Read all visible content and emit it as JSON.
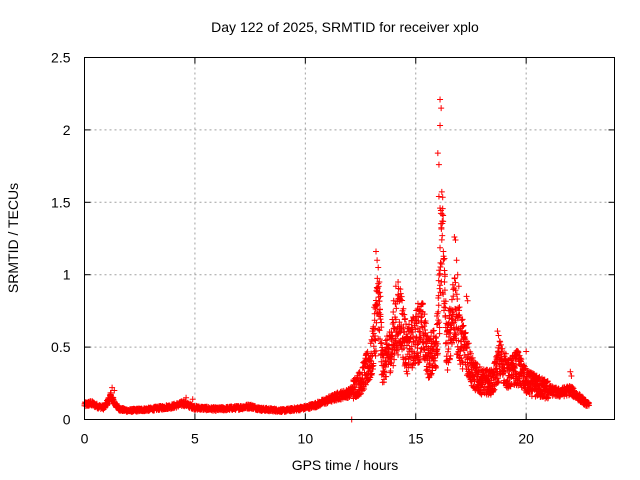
{
  "chart_data": {
    "type": "scatter",
    "title": "Day 122 of 2025, SRMTID for receiver xplo",
    "xlabel": "GPS time / hours",
    "ylabel": "SRMTID / TECUs",
    "xlim": [
      0,
      24
    ],
    "ylim": [
      0,
      2.5
    ],
    "xticks": [
      0,
      5,
      10,
      15,
      20
    ],
    "yticks": [
      0,
      0.5,
      1,
      1.5,
      2,
      2.5
    ],
    "xtick_labels": [
      "0",
      "5",
      "10",
      "15",
      "20"
    ],
    "ytick_labels": [
      "0",
      "0.5",
      "1",
      "1.5",
      "2",
      "2.5"
    ],
    "grid": true,
    "marker": "plus",
    "color": "#ff0000",
    "series": [
      {
        "name": "SRMTID",
        "profile": [
          [
            0.0,
            0.1
          ],
          [
            0.3,
            0.11
          ],
          [
            0.6,
            0.09
          ],
          [
            0.9,
            0.08
          ],
          [
            1.2,
            0.16
          ],
          [
            1.4,
            0.1
          ],
          [
            1.6,
            0.07
          ],
          [
            2.0,
            0.06
          ],
          [
            3.0,
            0.07
          ],
          [
            4.0,
            0.09
          ],
          [
            4.5,
            0.11
          ],
          [
            5.0,
            0.08
          ],
          [
            6.0,
            0.07
          ],
          [
            7.0,
            0.08
          ],
          [
            7.5,
            0.09
          ],
          [
            8.0,
            0.07
          ],
          [
            9.0,
            0.06
          ],
          [
            9.5,
            0.07
          ],
          [
            10.0,
            0.08
          ],
          [
            10.5,
            0.1
          ],
          [
            11.0,
            0.13
          ],
          [
            11.5,
            0.16
          ],
          [
            12.0,
            0.18
          ],
          [
            12.5,
            0.25
          ],
          [
            13.0,
            0.4
          ],
          [
            13.3,
            0.8
          ],
          [
            13.5,
            0.35
          ],
          [
            13.8,
            0.45
          ],
          [
            14.0,
            0.55
          ],
          [
            14.3,
            0.7
          ],
          [
            14.6,
            0.45
          ],
          [
            15.0,
            0.55
          ],
          [
            15.3,
            0.6
          ],
          [
            15.6,
            0.4
          ],
          [
            16.0,
            0.55
          ],
          [
            16.2,
            1.3
          ],
          [
            16.4,
            0.45
          ],
          [
            16.7,
            0.75
          ],
          [
            17.0,
            0.55
          ],
          [
            17.3,
            0.45
          ],
          [
            17.6,
            0.3
          ],
          [
            18.0,
            0.25
          ],
          [
            18.5,
            0.25
          ],
          [
            18.8,
            0.4
          ],
          [
            19.2,
            0.3
          ],
          [
            19.6,
            0.35
          ],
          [
            20.0,
            0.25
          ],
          [
            20.5,
            0.22
          ],
          [
            21.0,
            0.2
          ],
          [
            21.5,
            0.18
          ],
          [
            22.0,
            0.2
          ],
          [
            22.4,
            0.15
          ],
          [
            22.8,
            0.1
          ]
        ],
        "spikes": [
          [
            1.25,
            0.22
          ],
          [
            1.35,
            0.2
          ],
          [
            4.6,
            0.15
          ],
          [
            4.9,
            0.14
          ],
          [
            13.2,
            1.16
          ],
          [
            13.25,
            1.1
          ],
          [
            13.3,
            1.05
          ],
          [
            13.35,
            0.95
          ],
          [
            13.4,
            0.85
          ],
          [
            14.1,
            0.92
          ],
          [
            14.2,
            0.95
          ],
          [
            14.3,
            0.9
          ],
          [
            14.0,
            0.82
          ],
          [
            15.1,
            0.8
          ],
          [
            15.2,
            0.78
          ],
          [
            14.8,
            0.62
          ],
          [
            16.0,
            1.84
          ],
          [
            16.05,
            1.76
          ],
          [
            16.1,
            2.21
          ],
          [
            16.15,
            2.15
          ],
          [
            16.1,
            2.03
          ],
          [
            16.05,
            1.54
          ],
          [
            16.1,
            1.46
          ],
          [
            16.2,
            1.27
          ],
          [
            16.25,
            1.16
          ],
          [
            16.3,
            0.95
          ],
          [
            16.75,
            1.26
          ],
          [
            16.8,
            1.24
          ],
          [
            16.85,
            1.1
          ],
          [
            16.9,
            1.0
          ],
          [
            16.95,
            0.92
          ],
          [
            17.3,
            0.85
          ],
          [
            17.35,
            0.82
          ],
          [
            18.7,
            0.61
          ],
          [
            18.75,
            0.58
          ],
          [
            20.0,
            0.47
          ],
          [
            19.5,
            0.46
          ],
          [
            22.0,
            0.33
          ],
          [
            22.05,
            0.3
          ]
        ],
        "isolated": [
          [
            12.1,
            0.0
          ]
        ],
        "x_range": [
          0.0,
          22.85
        ]
      }
    ]
  }
}
